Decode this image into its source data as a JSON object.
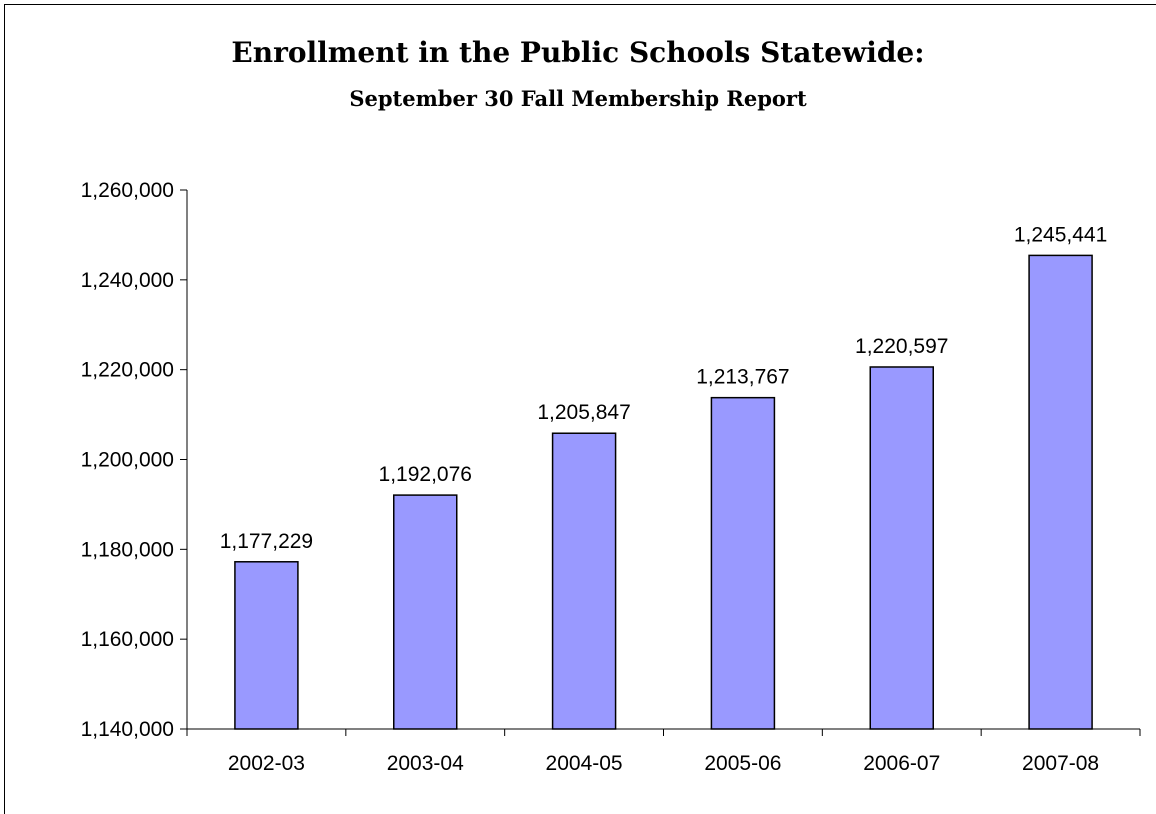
{
  "chart_data": {
    "type": "bar",
    "title": "Enrollment in the Public Schools Statewide:",
    "subtitle": "September 30 Fall Membership Report",
    "xlabel": "",
    "ylabel": "",
    "categories": [
      "2002-03",
      "2003-04",
      "2004-05",
      "2005-06",
      "2006-07",
      "2007-08"
    ],
    "values": [
      1177229,
      1192076,
      1205847,
      1213767,
      1220597,
      1245441
    ],
    "data_labels": [
      "1,177,229",
      "1,192,076",
      "1,205,847",
      "1,213,767",
      "1,220,597",
      "1,245,441"
    ],
    "yticks": [
      1140000,
      1160000,
      1180000,
      1200000,
      1220000,
      1240000,
      1260000
    ],
    "ytick_labels": [
      "1,140,000",
      "1,160,000",
      "1,180,000",
      "1,200,000",
      "1,220,000",
      "1,240,000",
      "1,260,000"
    ],
    "ylim": [
      1140000,
      1260000
    ],
    "grid": false,
    "legend": "none",
    "bar_color": "#9999ff",
    "bar_edge_color": "#000000"
  }
}
